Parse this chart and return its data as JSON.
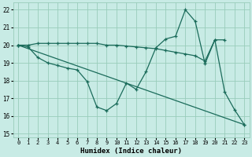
{
  "xlabel": "Humidex (Indice chaleur)",
  "bg_color": "#c8ebe5",
  "grid_color": "#99ccbb",
  "line_color": "#1a6b5a",
  "xlim": [
    -0.5,
    23.5
  ],
  "ylim": [
    14.8,
    22.4
  ],
  "xticks": [
    0,
    1,
    2,
    3,
    4,
    5,
    6,
    7,
    8,
    9,
    10,
    11,
    12,
    13,
    14,
    15,
    16,
    17,
    18,
    19,
    20,
    21,
    22,
    23
  ],
  "yticks": [
    15,
    16,
    17,
    18,
    19,
    20,
    21,
    22
  ],
  "line1_x": [
    0,
    1,
    2,
    3,
    4,
    5,
    6,
    7,
    8,
    9,
    10,
    11,
    12,
    13,
    14,
    15,
    16,
    17,
    18,
    19,
    20,
    21
  ],
  "line1_y": [
    20.0,
    20.0,
    20.1,
    20.1,
    20.1,
    20.1,
    20.1,
    20.1,
    20.1,
    20.0,
    20.0,
    19.95,
    19.9,
    19.85,
    19.8,
    19.7,
    19.6,
    19.5,
    19.4,
    19.1,
    20.3,
    20.3
  ],
  "line2_x": [
    0,
    1,
    2,
    3,
    4,
    5,
    6,
    7,
    8,
    9,
    10,
    11,
    12,
    13,
    14,
    15,
    16,
    17,
    18,
    19,
    20,
    21,
    22,
    23
  ],
  "line2_y": [
    20.0,
    19.9,
    19.3,
    19.0,
    18.85,
    18.7,
    18.6,
    17.95,
    16.5,
    16.3,
    16.7,
    17.85,
    17.5,
    18.5,
    19.85,
    20.35,
    20.5,
    22.0,
    21.35,
    18.95,
    20.3,
    17.35,
    16.35,
    15.5
  ],
  "line3_x": [
    0,
    23
  ],
  "line3_y": [
    20.0,
    15.5
  ]
}
